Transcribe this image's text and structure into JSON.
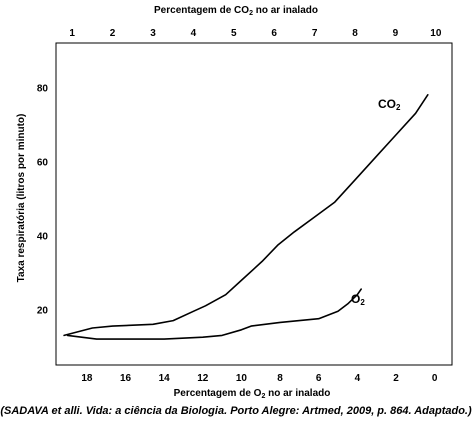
{
  "chart_data": {
    "type": "line",
    "top_axis": {
      "label_parts": [
        "Percentagem de CO",
        "2",
        " no ar inalado"
      ],
      "ticks": [
        1,
        2,
        3,
        4,
        5,
        6,
        7,
        8,
        9,
        10
      ],
      "range": [
        0.6,
        10.4
      ]
    },
    "bottom_axis": {
      "label_parts": [
        "Percentagem de O",
        "2",
        "  no ar inalado"
      ],
      "ticks": [
        18,
        16,
        14,
        12,
        10,
        8,
        6,
        4,
        2,
        0
      ],
      "range": [
        19.6,
        -0.9
      ]
    },
    "y_axis": {
      "label": "Taxa respiratória (litros por minuto)",
      "ticks": [
        20,
        40,
        60,
        80
      ],
      "range": [
        5,
        92
      ]
    },
    "series": [
      {
        "name_parts": [
          "CO",
          "2"
        ],
        "axis": "top",
        "x": [
          0.8,
          1.5,
          2.0,
          3.0,
          3.5,
          4.0,
          4.3,
          4.8,
          5.2,
          5.7,
          6.1,
          6.5,
          7.0,
          7.5,
          8.0,
          8.5,
          9.0,
          9.5,
          9.8
        ],
        "y": [
          13,
          15,
          15.5,
          16,
          17,
          19.5,
          21,
          24,
          28,
          33,
          37.5,
          41,
          45,
          49,
          55,
          61,
          67,
          73,
          78
        ]
      },
      {
        "name_parts": [
          "O",
          "2"
        ],
        "axis": "bottom",
        "x": [
          19.0,
          17.5,
          16.0,
          14.0,
          12.0,
          11.0,
          10.0,
          9.5,
          8.0,
          6.0,
          5.0,
          4.5,
          4.0,
          3.8
        ],
        "y": [
          13,
          12,
          12,
          12,
          12.5,
          13,
          14.5,
          15.5,
          16.5,
          17.5,
          19.5,
          21.5,
          24,
          25.5
        ]
      }
    ]
  },
  "caption": "(SADAVA et alli. Vida: a ciência da Biologia. Porto Alegre: Artmed, 2009, p. 864. Adaptado.)"
}
